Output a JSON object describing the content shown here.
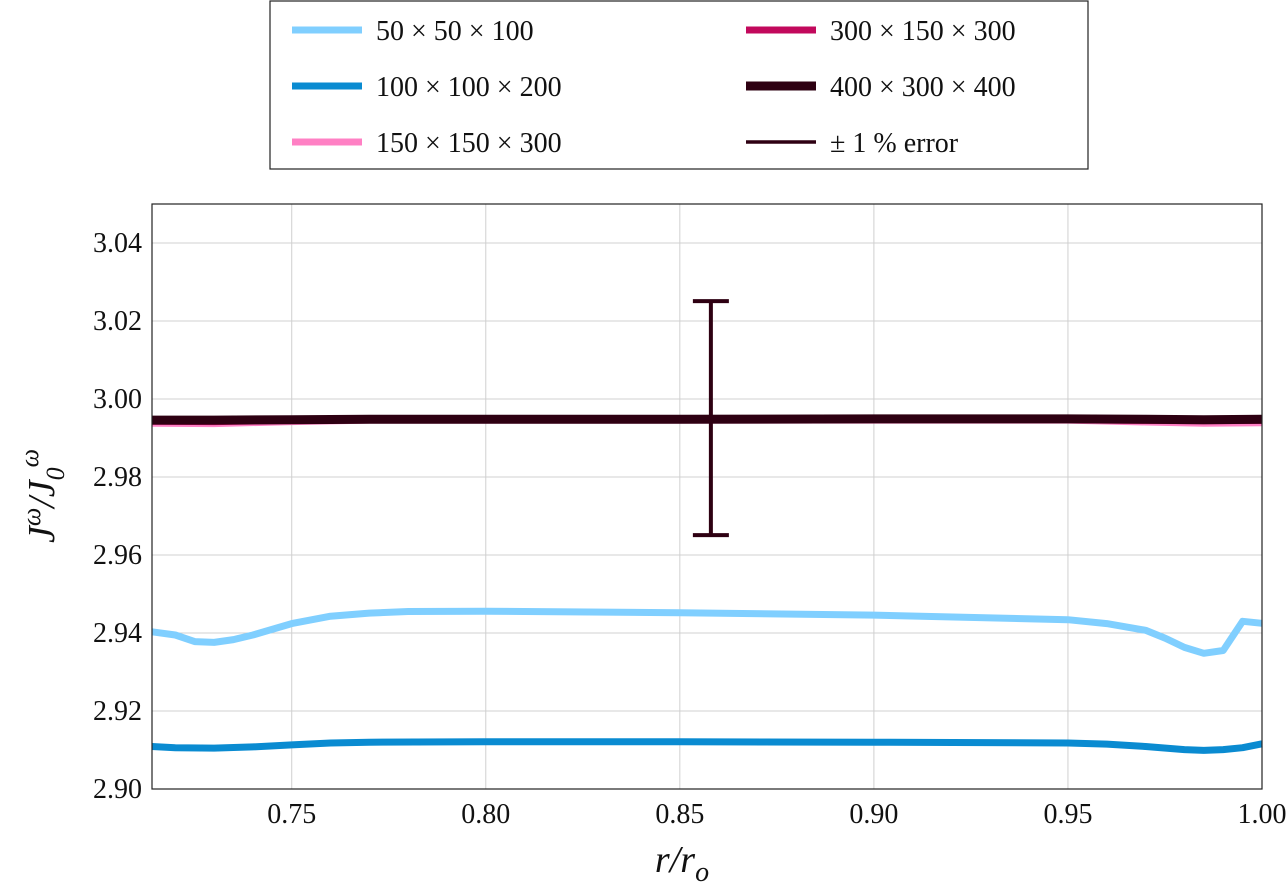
{
  "chart_data": {
    "type": "line",
    "xlabel": "r/r_o",
    "ylabel": "J^ω/J_0^ω",
    "xlim": [
      0.714,
      1.0
    ],
    "ylim": [
      2.9,
      3.05
    ],
    "xticks": [
      "0.75",
      "0.80",
      "0.85",
      "0.90",
      "0.95",
      "1.00"
    ],
    "xtick_values": [
      0.75,
      0.8,
      0.85,
      0.9,
      0.95,
      1.0
    ],
    "yticks": [
      "2.90",
      "2.92",
      "2.94",
      "2.96",
      "2.98",
      "3.00",
      "3.02",
      "3.04"
    ],
    "ytick_values": [
      2.9,
      2.92,
      2.94,
      2.96,
      2.98,
      3.0,
      3.02,
      3.04
    ],
    "grid": true,
    "legend_position": "top, outside plot",
    "series": [
      {
        "name": "50 × 50 × 100",
        "color": "#80cfff",
        "x": [
          0.714,
          0.72,
          0.725,
          0.73,
          0.735,
          0.74,
          0.75,
          0.76,
          0.77,
          0.78,
          0.8,
          0.85,
          0.9,
          0.95,
          0.96,
          0.97,
          0.975,
          0.98,
          0.985,
          0.99,
          0.995,
          1.0
        ],
        "y": [
          2.9403,
          2.9395,
          2.9378,
          2.9376,
          2.9383,
          2.9395,
          2.9424,
          2.9443,
          2.9451,
          2.9455,
          2.9456,
          2.9452,
          2.9446,
          2.9434,
          2.9424,
          2.9407,
          2.9387,
          2.9363,
          2.9348,
          2.9355,
          2.943,
          2.9425
        ]
      },
      {
        "name": "100 × 100 × 200",
        "color": "#0a8bd1",
        "x": [
          0.714,
          0.72,
          0.73,
          0.74,
          0.75,
          0.76,
          0.77,
          0.8,
          0.85,
          0.9,
          0.95,
          0.96,
          0.97,
          0.98,
          0.985,
          0.99,
          0.995,
          1.0
        ],
        "y": [
          2.9109,
          2.9106,
          2.9105,
          2.9108,
          2.9113,
          2.9118,
          2.912,
          2.9121,
          2.9121,
          2.912,
          2.9118,
          2.9115,
          2.9109,
          2.9101,
          2.9099,
          2.9101,
          2.9106,
          2.9116
        ]
      },
      {
        "name": "150 × 150 × 300",
        "color": "#ff80c4",
        "x": [
          0.714,
          0.73,
          0.75,
          0.77,
          0.8,
          0.85,
          0.9,
          0.95,
          0.97,
          0.985,
          1.0
        ],
        "y": [
          2.9938,
          2.9937,
          2.9942,
          2.9946,
          2.9946,
          2.9946,
          2.9946,
          2.9946,
          2.9941,
          2.9938,
          2.9939
        ]
      },
      {
        "name": "300 × 150 × 300",
        "color": "#c2095c",
        "x": [
          0.714,
          0.73,
          0.75,
          0.77,
          0.8,
          0.85,
          0.9,
          0.95,
          0.97,
          0.985,
          1.0
        ],
        "y": [
          2.9943,
          2.9942,
          2.9945,
          2.9947,
          2.9947,
          2.9947,
          2.9947,
          2.9947,
          2.9945,
          2.9944,
          2.9945
        ]
      },
      {
        "name": "400 × 300 × 400",
        "color": "#2e0012",
        "x": [
          0.714,
          0.73,
          0.75,
          0.77,
          0.8,
          0.85,
          0.9,
          0.95,
          0.97,
          0.985,
          1.0
        ],
        "y": [
          2.9946,
          2.9946,
          2.9947,
          2.9948,
          2.9948,
          2.9948,
          2.9949,
          2.9949,
          2.9948,
          2.9947,
          2.9948
        ]
      }
    ],
    "error_bar": {
      "name": "± 1 % error",
      "color": "#2e0012",
      "x": 0.858,
      "y": 2.9948,
      "low": 2.9651,
      "high": 3.0251
    }
  }
}
